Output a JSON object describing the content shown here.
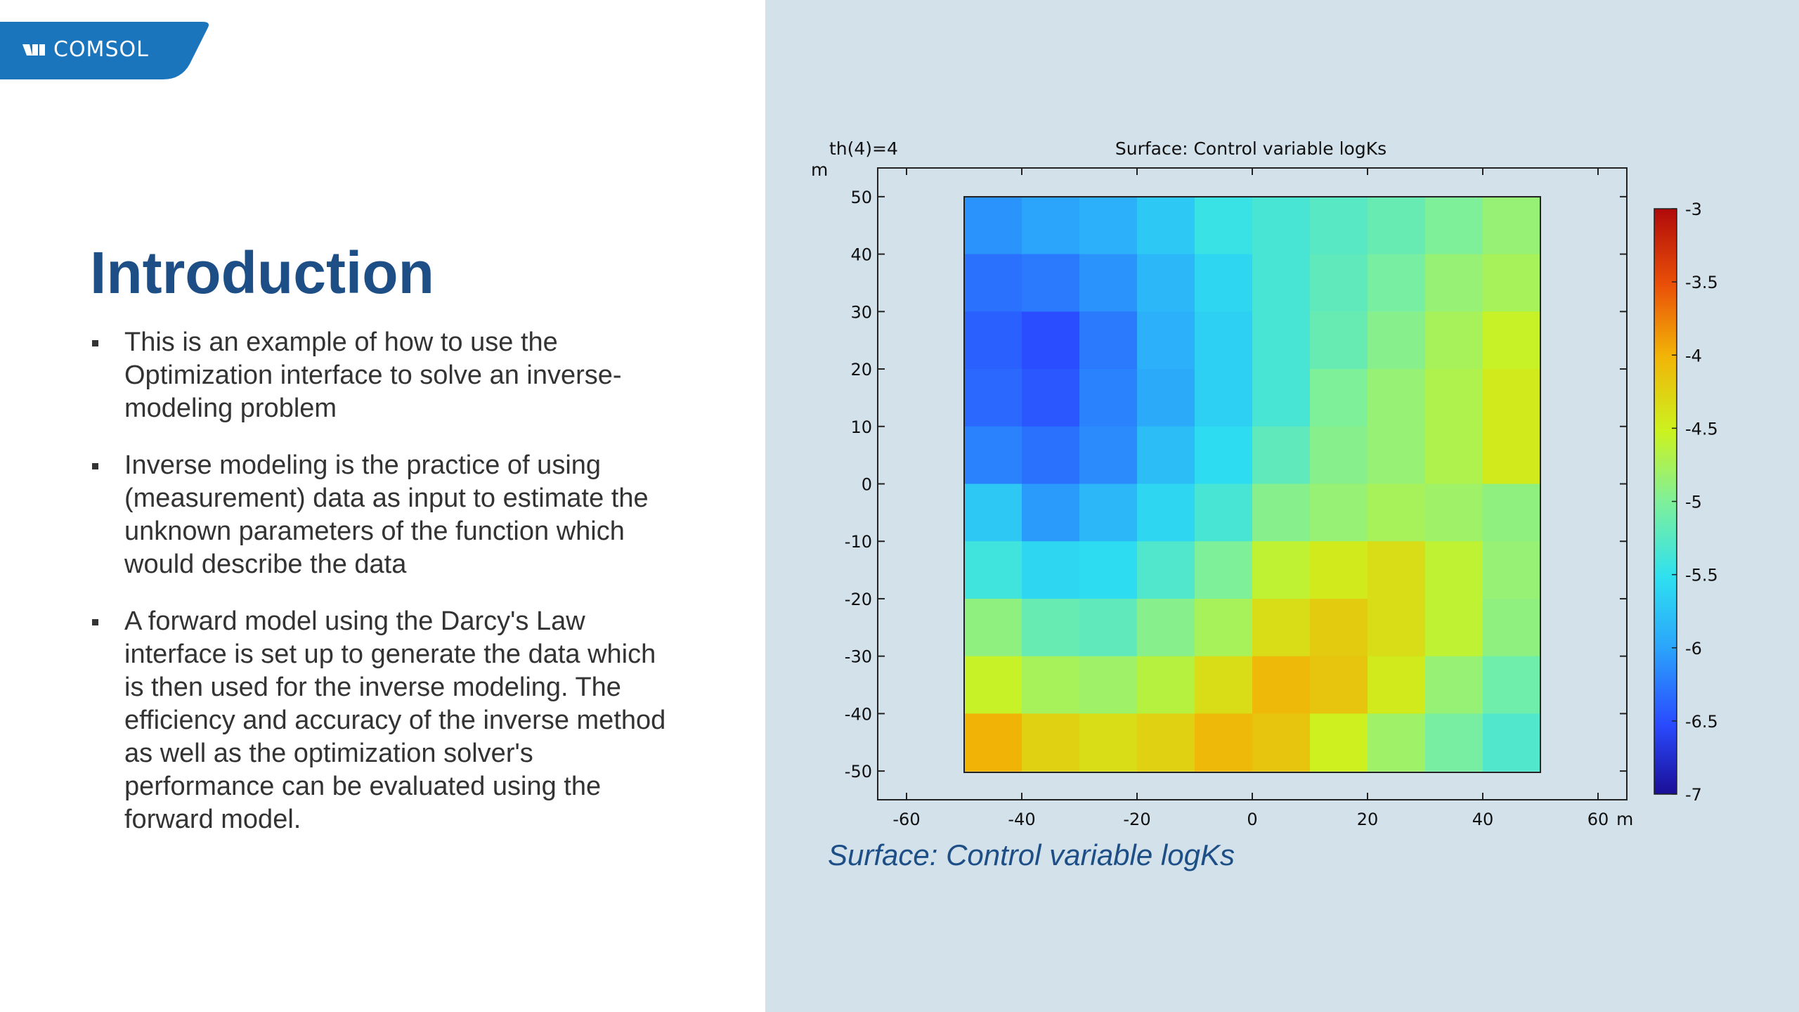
{
  "brand": {
    "logo_text": "COMSOL",
    "color": "#1b75bc"
  },
  "title": "Introduction",
  "bullets": [
    {
      "text": "This is an example of how to use the Optimization interface to solve an inverse-modeling problem"
    },
    {
      "text": "Inverse modeling is the practice of using (measurement) data as input to estimate the unknown parameters of the function which would describe the data"
    },
    {
      "text": "A forward model using the Darcy's Law interface is set up to generate the data which is then used for the inverse modeling. The efficiency and accuracy of the inverse method as well as the optimization solver's performance can be evaluated using the forward model."
    }
  ],
  "plot": {
    "param_label": "th(4)=4",
    "title": "Surface: Control variable logKs",
    "y_unit": "m",
    "x_unit": "m",
    "caption": "Surface: Control variable logKs"
  },
  "chart_data": {
    "type": "heatmap",
    "title": "Surface: Control variable logKs",
    "x_ticks": [
      "-60",
      "-40",
      "-20",
      "0",
      "20",
      "40",
      "60"
    ],
    "y_ticks": [
      "50",
      "40",
      "30",
      "20",
      "10",
      "0",
      "-10",
      "-20",
      "-30",
      "-40",
      "-50"
    ],
    "xlim": [
      -65,
      65
    ],
    "ylim": [
      -55,
      55
    ],
    "x": [
      -45,
      -35,
      -25,
      -15,
      -5,
      5,
      15,
      25,
      35,
      45
    ],
    "y": [
      45,
      35,
      25,
      15,
      5,
      -5,
      -15,
      -25,
      -35,
      -45
    ],
    "z": [
      [
        -6.1,
        -6.0,
        -5.9,
        -5.7,
        -5.45,
        -5.35,
        -5.25,
        -5.15,
        -5.0,
        -4.85
      ],
      [
        -6.3,
        -6.25,
        -6.1,
        -5.85,
        -5.6,
        -5.35,
        -5.2,
        -5.05,
        -4.85,
        -4.75
      ],
      [
        -6.4,
        -6.5,
        -6.25,
        -5.9,
        -5.65,
        -5.35,
        -5.15,
        -4.95,
        -4.75,
        -4.55
      ],
      [
        -6.35,
        -6.45,
        -6.2,
        -5.95,
        -5.65,
        -5.35,
        -5.0,
        -4.85,
        -4.7,
        -4.45
      ],
      [
        -6.2,
        -6.3,
        -6.15,
        -5.8,
        -5.55,
        -5.2,
        -4.95,
        -4.85,
        -4.7,
        -4.45
      ],
      [
        -5.7,
        -6.05,
        -5.85,
        -5.6,
        -5.35,
        -4.95,
        -4.85,
        -4.75,
        -4.8,
        -4.9
      ],
      [
        -5.4,
        -5.6,
        -5.55,
        -5.3,
        -5.0,
        -4.6,
        -4.45,
        -4.35,
        -4.6,
        -4.85
      ],
      [
        -4.9,
        -5.15,
        -5.2,
        -4.95,
        -4.75,
        -4.35,
        -4.2,
        -4.35,
        -4.6,
        -4.9
      ],
      [
        -4.55,
        -4.75,
        -4.8,
        -4.65,
        -4.35,
        -4.05,
        -4.15,
        -4.45,
        -4.85,
        -5.1
      ],
      [
        -4.0,
        -4.25,
        -4.35,
        -4.25,
        -4.05,
        -4.15,
        -4.5,
        -4.8,
        -5.05,
        -5.3
      ]
    ],
    "colorbar": {
      "ticks": [
        "-3",
        "-3.5",
        "-4",
        "-4.5",
        "-5",
        "-5.5",
        "-6",
        "-6.5",
        "-7"
      ],
      "range": [
        -7,
        -3
      ],
      "colormap": "rainbow"
    },
    "grid": false
  },
  "colors": {
    "right_bg": "#d3e1eb",
    "title_color": "#1d4f86",
    "text_color": "#333333"
  }
}
